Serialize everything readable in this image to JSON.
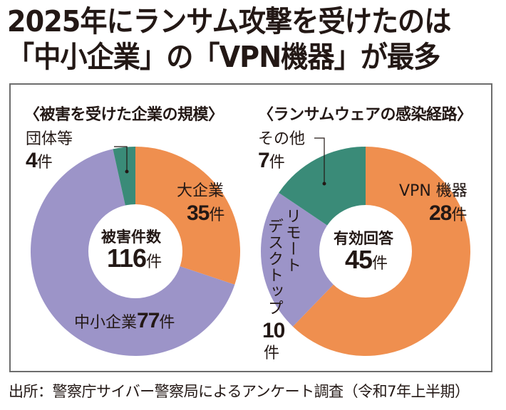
{
  "headline": {
    "line1": "2025年にランサム攻撃を受けたのは",
    "line2": "「中小企業」の「VPN機器」が最多"
  },
  "colors": {
    "orange": "#ef8f4f",
    "purple": "#9c94c8",
    "green": "#3a8b78",
    "frame": "#6d6d6d",
    "text": "#231815"
  },
  "chart_data": [
    {
      "type": "pie",
      "donut": true,
      "title": "〈被害を受けた企業の規模〉",
      "center_label": "被害件数",
      "center_value": "116",
      "center_unit": "件",
      "total": 116,
      "unit": "件",
      "start": "12 o'clock, clockwise",
      "slices": [
        {
          "name": "大企業",
          "value": 35,
          "value_label": "35",
          "color": "#ef8f4f"
        },
        {
          "name": "中小企業",
          "value": 77,
          "value_label": "77",
          "color": "#9c94c8"
        },
        {
          "name": "団体等",
          "value": 4,
          "value_label": "4",
          "color": "#3a8b78",
          "leader_line": true
        }
      ]
    },
    {
      "type": "pie",
      "donut": true,
      "title": "〈ランサムウェアの感染経路〉",
      "center_label": "有効回答",
      "center_value": "45",
      "center_unit": "件",
      "total": 45,
      "unit": "件",
      "start": "12 o'clock, clockwise",
      "slices": [
        {
          "name": "VPN 機器",
          "value": 28,
          "value_label": "28",
          "color": "#ef8f4f"
        },
        {
          "name": "リモートデスクトップ",
          "name_lines": [
            "リモート",
            "デスクトップ"
          ],
          "value": 10,
          "value_label": "10",
          "color": "#9c94c8"
        },
        {
          "name": "その他",
          "value": 7,
          "value_label": "7",
          "color": "#3a8b78",
          "leader_line": true
        }
      ]
    }
  ],
  "source": "出所：警察庁サイバー警察局によるアンケート調査（令和7年上半期）"
}
